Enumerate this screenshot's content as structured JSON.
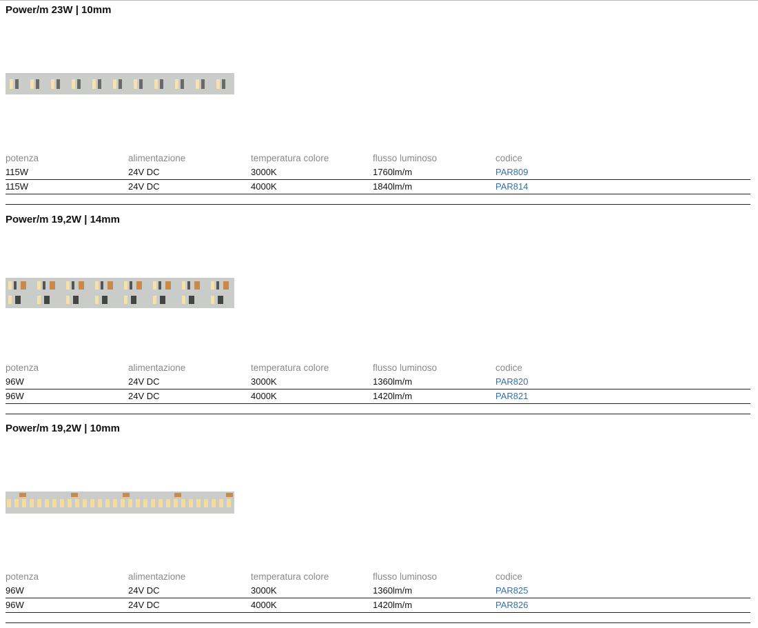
{
  "columns": [
    "potenza",
    "alimentazione",
    "temperatura colore",
    "flusso luminoso",
    "codice"
  ],
  "link_color": "#3b6ea5",
  "sections": [
    {
      "title": "Power/m 23W | 10mm",
      "image": "led-strip-10mm",
      "rows": [
        [
          "115W",
          "24V DC",
          "3000K",
          "1760lm/m",
          "PAR809"
        ],
        [
          "115W",
          "24V DC",
          "4000K",
          "1840lm/m",
          "PAR814"
        ]
      ]
    },
    {
      "title": "Power/m 19,2W | 14mm",
      "image": "led-strip-14mm",
      "rows": [
        [
          "96W",
          "24V DC",
          "3000K",
          "1360lm/m",
          "PAR820"
        ],
        [
          "96W",
          "24V DC",
          "4000K",
          "1420lm/m",
          "PAR821"
        ]
      ]
    },
    {
      "title": "Power/m 19,2W | 10mm",
      "image": "led-strip-10mm",
      "rows": [
        [
          "96W",
          "24V DC",
          "3000K",
          "1360lm/m",
          "PAR825"
        ],
        [
          "96W",
          "24V DC",
          "4000K",
          "1420lm/m",
          "PAR826"
        ]
      ]
    }
  ]
}
